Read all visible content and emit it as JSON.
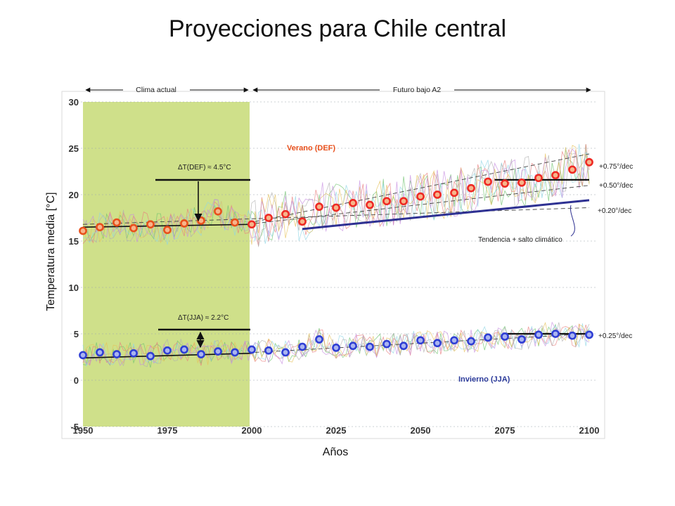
{
  "title": "Proyecciones para Chile central",
  "chart_data": {
    "type": "line",
    "xlabel": "Años",
    "ylabel": "Temperatura media [°C]",
    "xlim": [
      1950,
      2100
    ],
    "ylim": [
      -5,
      30
    ],
    "x_ticks": [
      "1950",
      "1975",
      "2000",
      "2025",
      "2050",
      "2075",
      "2100"
    ],
    "y_ticks": [
      "-5",
      "0",
      "5",
      "10",
      "15",
      "20",
      "25",
      "30"
    ],
    "grid": "horizontal-dashed",
    "shaded_period": {
      "from": 1950,
      "to": 2000,
      "color": "#cfe08a"
    },
    "periods": {
      "current": "Clima actual",
      "future": "Futuro bajo A2"
    },
    "season_labels": {
      "summer": "Verano (DEF)",
      "winter": "Invierno (JJA)"
    },
    "deltas": {
      "summer": "ΔT(DEF) ≈ 4.5°C",
      "winter": "ΔT(JJA) ≈ 2.2°C"
    },
    "trend_labels": {
      "summer_high": "+0.75°/dec",
      "summer_mid": "+0.50°/dec",
      "summer_low": "+0.20°/dec",
      "winter": "+0.25°/dec",
      "jump": "Tendencia + salto climático"
    },
    "colors": {
      "summer_marker": "#e8501c",
      "summer_marker_future": "#ee2a24",
      "winter_marker": "#2f3fd4",
      "trend_line": "#2e3192",
      "shade": "#cfe08a"
    },
    "summer_levels": {
      "baseline": 16.8,
      "future_end": 21.6
    },
    "winter_levels": {
      "baseline": 2.9,
      "future_end": 5.0
    },
    "series": [
      {
        "name": "Verano (DEF)",
        "x": [
          1950,
          1955,
          1960,
          1965,
          1970,
          1975,
          1980,
          1985,
          1990,
          1995,
          2000,
          2005,
          2010,
          2015,
          2020,
          2025,
          2030,
          2035,
          2040,
          2045,
          2050,
          2055,
          2060,
          2065,
          2070,
          2075,
          2080,
          2085,
          2090,
          2095,
          2100
        ],
        "values": [
          16.1,
          16.5,
          17.0,
          16.4,
          16.8,
          16.2,
          16.9,
          17.2,
          18.2,
          17.0,
          16.8,
          17.5,
          17.9,
          17.1,
          18.7,
          18.6,
          19.1,
          18.9,
          19.3,
          19.3,
          19.8,
          20.0,
          20.2,
          20.7,
          21.4,
          21.2,
          21.3,
          21.8,
          22.1,
          22.7,
          23.5
        ]
      },
      {
        "name": "Invierno (JJA)",
        "x": [
          1950,
          1955,
          1960,
          1965,
          1970,
          1975,
          1980,
          1985,
          1990,
          1995,
          2000,
          2005,
          2010,
          2015,
          2020,
          2025,
          2030,
          2035,
          2040,
          2045,
          2050,
          2055,
          2060,
          2065,
          2070,
          2075,
          2080,
          2085,
          2090,
          2095,
          2100
        ],
        "values": [
          2.7,
          3.0,
          2.8,
          2.9,
          2.6,
          3.2,
          3.3,
          2.8,
          3.1,
          3.0,
          3.3,
          3.2,
          3.0,
          3.6,
          4.4,
          3.5,
          3.7,
          3.6,
          3.9,
          3.7,
          4.3,
          4.0,
          4.3,
          4.2,
          4.6,
          4.7,
          4.4,
          4.9,
          5.0,
          4.8,
          4.9
        ]
      }
    ]
  }
}
